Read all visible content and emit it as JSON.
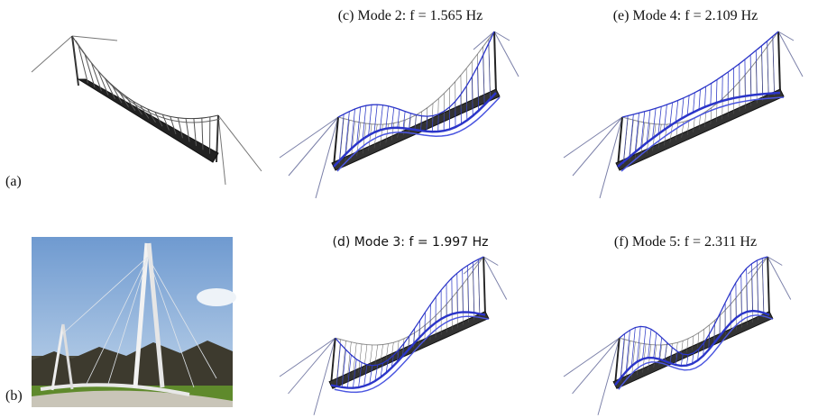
{
  "panels": [
    {
      "label": "(a)"
    },
    {
      "label": "(b)"
    },
    {
      "title": "(c) Mode 2: f = 1.565 Hz"
    },
    {
      "title": "(d) Mode 3: f = 1.997 Hz"
    },
    {
      "title": "(e) Mode 4: f = 2.109 Hz"
    },
    {
      "title": "(f) Mode 5: f = 2.311 Hz"
    }
  ]
}
